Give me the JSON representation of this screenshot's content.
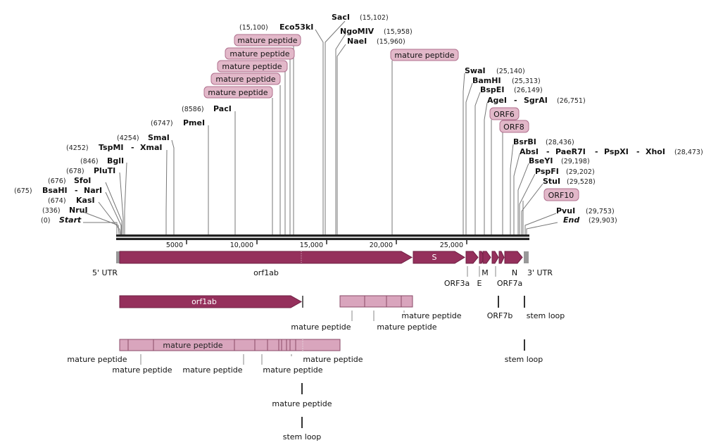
{
  "enzymes": {
    "start": {
      "name": "Start",
      "pos": "(0)"
    },
    "nrui": {
      "name": "NruI",
      "pos": "(336)"
    },
    "kasi": {
      "name": "KasI",
      "pos": "(674)"
    },
    "bsahi": {
      "name": "BsaHI",
      "sep": "-",
      "name2": "NarI",
      "pos": "(675)"
    },
    "sfoi": {
      "name": "SfoI",
      "pos": "(676)"
    },
    "pluti": {
      "name": "PluTI",
      "pos": "(678)"
    },
    "bgli": {
      "name": "BglI",
      "pos": "(846)"
    },
    "tspmi": {
      "name": "TspMI",
      "sep": "-",
      "name2": "XmaI",
      "pos": "(4252)"
    },
    "smai": {
      "name": "SmaI",
      "pos": "(4254)"
    },
    "pmei": {
      "name": "PmeI",
      "pos": "(6747)"
    },
    "paci": {
      "name": "PacI",
      "pos": "(8586)"
    },
    "eco53ki": {
      "name": "Eco53kI",
      "pos": "(15,100)"
    },
    "saci": {
      "name": "SacI",
      "pos": "(15,102)"
    },
    "ngomiv": {
      "name": "NgoMIV",
      "pos": "(15,958)"
    },
    "naei": {
      "name": "NaeI",
      "pos": "(15,960)"
    },
    "swai": {
      "name": "SwaI",
      "pos": "(25,140)"
    },
    "bamhi": {
      "name": "BamHI",
      "pos": "(25,313)"
    },
    "bspei": {
      "name": "BspEI",
      "pos": "(26,149)"
    },
    "agei": {
      "name": "AgeI",
      "sep": "-",
      "name2": "SgrAI",
      "pos": "(26,751)"
    },
    "bsrbi": {
      "name": "BsrBI",
      "pos": "(28,436)"
    },
    "absi": {
      "name": "AbsI",
      "sep1": "-",
      "name2": "PaeR7I",
      "sep2": "-",
      "name3": "PspXI",
      "sep3": "-",
      "name4": "XhoI",
      "pos": "(28,473)"
    },
    "bseyi": {
      "name": "BseYI",
      "pos": "(29,198)"
    },
    "pspfi": {
      "name": "PspFI",
      "pos": "(29,202)"
    },
    "stui": {
      "name": "StuI",
      "pos": "(29,528)"
    },
    "pvui": {
      "name": "PvuI",
      "pos": "(29,753)"
    },
    "end": {
      "name": "End",
      "pos": "(29,903)"
    }
  },
  "pills": {
    "mp1": "mature peptide",
    "mp2": "mature peptide",
    "mp3": "mature peptide",
    "mp4": "mature peptide",
    "mp5": "mature peptide",
    "mp6": "mature peptide",
    "orf6": "ORF6",
    "orf8": "ORF8",
    "orf10": "ORF10"
  },
  "ruler": {
    "ticks": [
      "5000",
      "10,000",
      "15,000",
      "20,000",
      "25,000"
    ]
  },
  "features": {
    "s_gene": "S",
    "utr5": "5' UTR",
    "orf1ab_label": "orf1ab",
    "orf3a": "ORF3a",
    "e": "E",
    "m": "M",
    "n": "N",
    "orf7a": "ORF7a",
    "utr3": "3' UTR",
    "orf1ab_second": "orf1ab",
    "orf7b": "ORF7b",
    "stem_loop_1": "stem loop",
    "stem_loop_2": "stem loop",
    "stem_loop_3": "stem loop",
    "mp_row_a1": "mature peptide",
    "mp_row_a2": "mature peptide",
    "mp_row_a3": "mature peptide",
    "mp_bar_label": "mature peptide",
    "mp_row_b1": "mature peptide",
    "mp_row_b2": "mature peptide",
    "mp_row_b3": "mature peptide",
    "mp_row_b4": "mature peptide",
    "mp_row_b5": "mature peptide",
    "mp_row_c": "mature peptide"
  },
  "colors": {
    "feature": "#95305c",
    "peptide": "#d9a5bd",
    "peptide_border": "#8a4a68",
    "pill": "#e2b8c9",
    "pill_border": "#b0708e"
  }
}
